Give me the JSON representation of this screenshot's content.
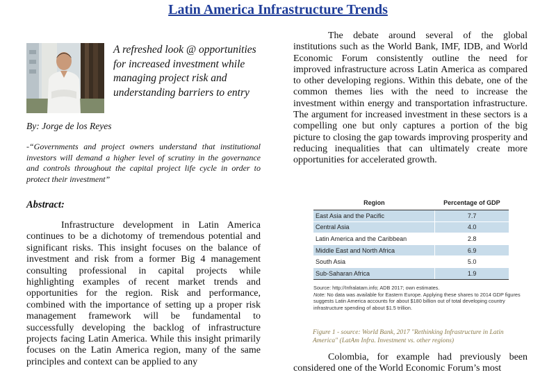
{
  "title": "Latin America Infrastructure Trends",
  "tagline": "A refreshed look @ opportunities for increased investment while managing project risk and understanding barriers to entry",
  "byline": "By: Jorge de los Reyes",
  "quote": "-“Governments and project owners understand that institutional investors will demand a higher level of scrutiny in the governance and controls throughout the capital project life cycle in order to protect their investment”",
  "abstract_heading": "Abstract:",
  "abstract_text": "Infrastructure development in Latin America continues to be a dichotomy of tremendous potential and significant risks.  This insight focuses on the balance of investment and risk from a former Big 4 management consulting professional in capital projects while highlighting examples of recent market trends and opportunities for the region. Risk and performance, combined with the importance of setting up a proper risk management framework will be fundamental to successfully developing the backlog of infrastructure projects facing Latin America. While this insight primarily focuses on the Latin America region, many of the same principles and context can be applied to any",
  "right_text": "The debate around several of the global institutions such as the World Bank, IMF, IDB, and World Economic Forum consistently outline the need for improved infrastructure across Latin America as compared to other developing regions. Within this debate, one of the common themes lies with the need to increase the investment within energy and transportation infrastructure. The argument for increased investment in these sectors is a compelling one but only captures a portion of the big picture to closing the gap towards improving prosperity and reducing inequalities that can ultimately create more opportunities for accelerated growth.",
  "table": {
    "headers": [
      "Region",
      "Percentage of GDP"
    ],
    "rows": [
      {
        "region": "East Asia and the Pacific",
        "value": "7.7"
      },
      {
        "region": "Central Asia",
        "value": "4.0"
      },
      {
        "region": "Latin America and the Caribbean",
        "value": "2.8"
      },
      {
        "region": "Middle East and North Africa",
        "value": "6.9"
      },
      {
        "region": "South Asia",
        "value": "5.0"
      },
      {
        "region": "Sub-Saharan Africa",
        "value": "1.9"
      }
    ],
    "row_shading_color": "#c8dcea"
  },
  "table_source": "Source: http://Infralatam.info; ADB 2017; own estimates.",
  "table_note_label": "Note:",
  "table_note": " No data was available for Eastern Europe. Applying these shares to 2014 GDP figures suggests Latin America accounts for about $180 billion out of total developing country infrastructure spending of about $1.5 trillion.",
  "caption": "Figure 1 -  source: World Bank, 2017 \"Rethinking Infrastructure in Latin America\" (LatAm Infra. Investment vs. other regions)",
  "colombia_text": "Colombia, for example had previously been considered one of the World Economic Forum’s most",
  "colors": {
    "title": "#1f3d99",
    "caption": "#8a7a4a"
  }
}
